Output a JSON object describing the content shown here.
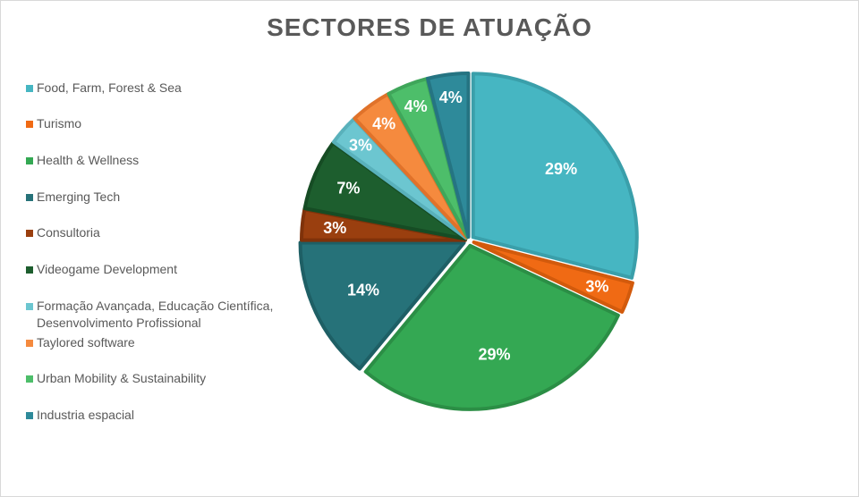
{
  "chart_data": {
    "type": "pie",
    "title": "SECTORES DE ATUAÇÃO",
    "legend_position": "left",
    "slices": [
      {
        "label": "Food, Farm, Forest & Sea",
        "value": 29,
        "display": "29%",
        "color": "#46B6C2",
        "dark": "#3A9FAA"
      },
      {
        "label": "Turismo",
        "value": 3,
        "display": "3%",
        "color": "#F06A14",
        "dark": "#D25A0C"
      },
      {
        "label": "Health & Wellness",
        "value": 29,
        "display": "29%",
        "color": "#34A853",
        "dark": "#2B8E45"
      },
      {
        "label": "Emerging Tech",
        "value": 14,
        "display": "14%",
        "color": "#267279",
        "dark": "#1E5F65"
      },
      {
        "label": "Consultoria",
        "value": 3,
        "display": "3%",
        "color": "#9A3F0F",
        "dark": "#7F320A"
      },
      {
        "label": "Videogame Development",
        "value": 7,
        "display": "7%",
        "color": "#1D5E2E",
        "dark": "#164C24"
      },
      {
        "label": "Formação Avançada, Educação Científica, Desenvolvimento Profissional",
        "value": 3,
        "display": "3%",
        "color": "#6CC6D0",
        "dark": "#59B1BB"
      },
      {
        "label": "Taylored software",
        "value": 4,
        "display": "4%",
        "color": "#F58A3E",
        "dark": "#E0722A"
      },
      {
        "label": "Urban Mobility & Sustainability",
        "value": 4,
        "display": "4%",
        "color": "#4DBE6A",
        "dark": "#3FA65A"
      },
      {
        "label": "Industria espacial",
        "value": 4,
        "display": "4%",
        "color": "#2E8A9A",
        "dark": "#257482"
      }
    ]
  }
}
